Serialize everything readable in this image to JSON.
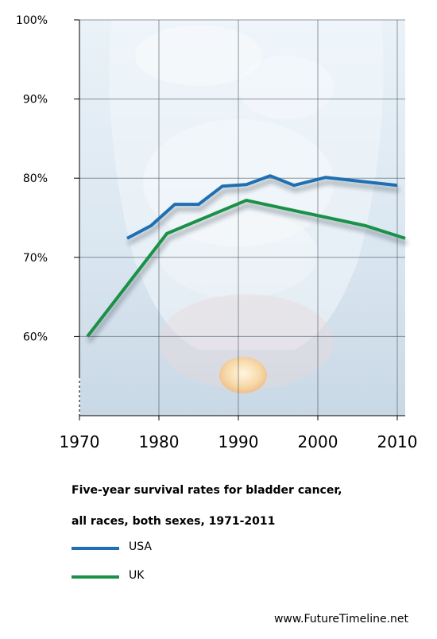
{
  "chart_data": {
    "type": "line",
    "title_lines": [
      "Five-year survival rates for bladder cancer,",
      "all races, both sexes, 1971-2011"
    ],
    "xlabel": "",
    "ylabel": "",
    "xlim": [
      1970,
      2011
    ],
    "ylim": [
      50,
      100
    ],
    "x_ticks": [
      "1970",
      "1980",
      "1990",
      "2000",
      "2010"
    ],
    "y_ticks": [
      "60%",
      "70%",
      "80%",
      "90%",
      "100%"
    ],
    "grid": true,
    "legend_position": "below",
    "series": [
      {
        "name": "USA",
        "color": "#1f6fb2",
        "x": [
          1976,
          1979,
          1982,
          1985,
          1988,
          1991,
          1994,
          1997,
          2001,
          2010
        ],
        "y": [
          72.4,
          74.0,
          76.7,
          76.7,
          79.0,
          79.2,
          80.3,
          79.1,
          80.1,
          79.1
        ]
      },
      {
        "name": "UK",
        "color": "#1a9147",
        "x": [
          1971,
          1981,
          1991,
          2006,
          2011
        ],
        "y": [
          60.0,
          73.0,
          77.2,
          74.0,
          72.4
        ]
      }
    ]
  },
  "footer": {
    "credit": "www.FutureTimeline.net"
  }
}
